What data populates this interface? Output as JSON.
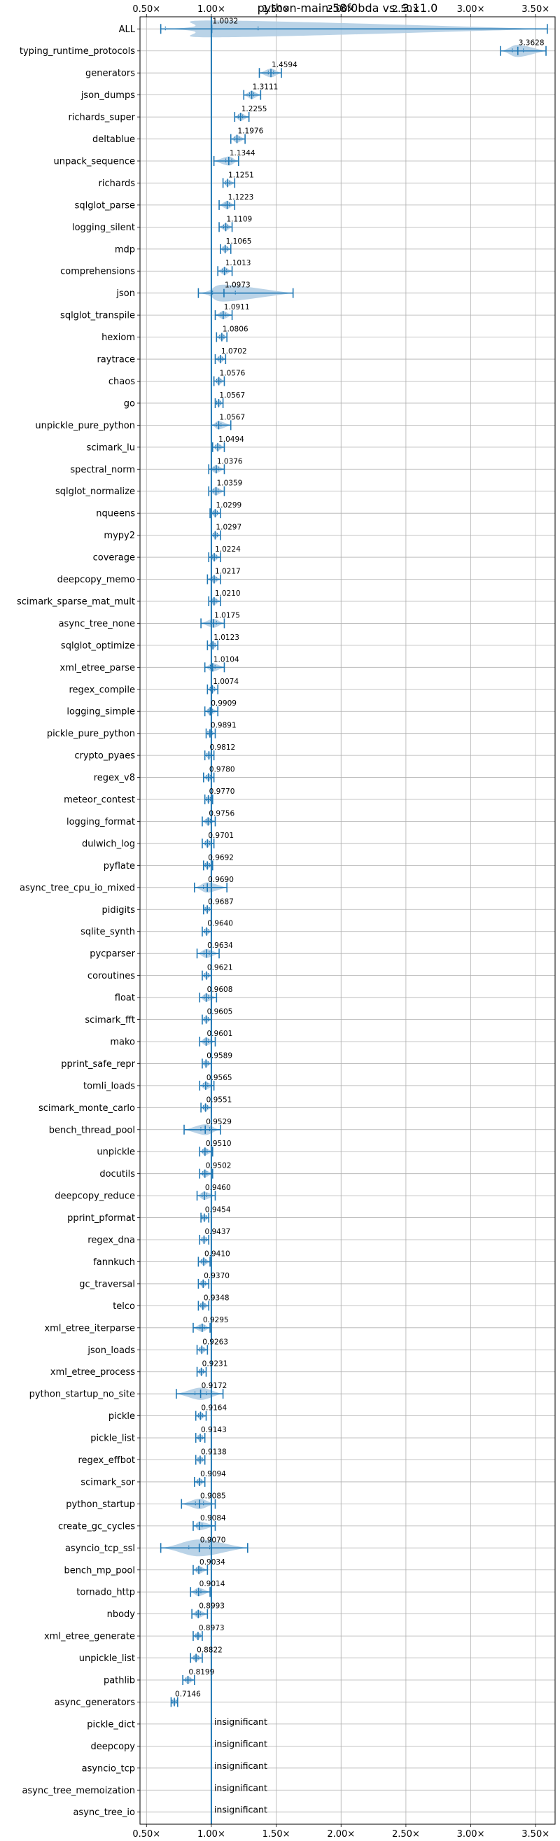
{
  "chart_data": {
    "type": "violin",
    "title": "python-main-58f0bda vs. 3.11.0",
    "xlabel": "",
    "ylabel": "",
    "xlim": [
      0.45,
      3.65
    ],
    "x_ticks": [
      {
        "value": 0.5,
        "label": "0.50×"
      },
      {
        "value": 1.0,
        "label": "1.00×"
      },
      {
        "value": 1.5,
        "label": "1.50×"
      },
      {
        "value": 2.0,
        "label": "2.00×"
      },
      {
        "value": 2.5,
        "label": "2.50×"
      },
      {
        "value": 3.0,
        "label": "3.00×"
      },
      {
        "value": 3.5,
        "label": "3.50×"
      }
    ],
    "reference_line": 1.0,
    "grid": true,
    "accent_color": "#1f77b4",
    "violin_color": "#aecbe3",
    "benchmarks": [
      {
        "name": "ALL",
        "value": 1.0032,
        "label": "1.0032",
        "min": 0.61,
        "max": 3.59
      },
      {
        "name": "typing_runtime_protocols",
        "value": 3.3628,
        "label": "3.3628",
        "min": 3.23,
        "max": 3.58
      },
      {
        "name": "generators",
        "value": 1.4594,
        "label": "1.4594",
        "min": 1.37,
        "max": 1.54
      },
      {
        "name": "json_dumps",
        "value": 1.3111,
        "label": "1.3111",
        "min": 1.25,
        "max": 1.38
      },
      {
        "name": "richards_super",
        "value": 1.2255,
        "label": "1.2255",
        "min": 1.18,
        "max": 1.29
      },
      {
        "name": "deltablue",
        "value": 1.1976,
        "label": "1.1976",
        "min": 1.15,
        "max": 1.26
      },
      {
        "name": "unpack_sequence",
        "value": 1.1344,
        "label": "1.1344",
        "min": 1.02,
        "max": 1.21
      },
      {
        "name": "richards",
        "value": 1.1251,
        "label": "1.1251",
        "min": 1.09,
        "max": 1.18
      },
      {
        "name": "sqlglot_parse",
        "value": 1.1223,
        "label": "1.1223",
        "min": 1.06,
        "max": 1.18
      },
      {
        "name": "logging_silent",
        "value": 1.1109,
        "label": "1.1109",
        "min": 1.06,
        "max": 1.16
      },
      {
        "name": "mdp",
        "value": 1.1065,
        "label": "1.1065",
        "min": 1.07,
        "max": 1.15
      },
      {
        "name": "comprehensions",
        "value": 1.1013,
        "label": "1.1013",
        "min": 1.05,
        "max": 1.16
      },
      {
        "name": "json",
        "value": 1.0973,
        "label": "1.0973",
        "min": 0.9,
        "max": 1.63
      },
      {
        "name": "sqlglot_transpile",
        "value": 1.0911,
        "label": "1.0911",
        "min": 1.03,
        "max": 1.16
      },
      {
        "name": "hexiom",
        "value": 1.0806,
        "label": "1.0806",
        "min": 1.04,
        "max": 1.12
      },
      {
        "name": "raytrace",
        "value": 1.0702,
        "label": "1.0702",
        "min": 1.03,
        "max": 1.11
      },
      {
        "name": "chaos",
        "value": 1.0576,
        "label": "1.0576",
        "min": 1.02,
        "max": 1.1
      },
      {
        "name": "go",
        "value": 1.0567,
        "label": "1.0567",
        "min": 1.03,
        "max": 1.09
      },
      {
        "name": "unpickle_pure_python",
        "value": 1.0567,
        "label": "1.0567",
        "min": 1.0,
        "max": 1.15
      },
      {
        "name": "scimark_lu",
        "value": 1.0494,
        "label": "1.0494",
        "min": 1.01,
        "max": 1.1
      },
      {
        "name": "spectral_norm",
        "value": 1.0376,
        "label": "1.0376",
        "min": 0.98,
        "max": 1.1
      },
      {
        "name": "sqlglot_normalize",
        "value": 1.0359,
        "label": "1.0359",
        "min": 0.98,
        "max": 1.1
      },
      {
        "name": "nqueens",
        "value": 1.0299,
        "label": "1.0299",
        "min": 0.99,
        "max": 1.07
      },
      {
        "name": "mypy2",
        "value": 1.0297,
        "label": "1.0297",
        "min": 1.0,
        "max": 1.07
      },
      {
        "name": "coverage",
        "value": 1.0224,
        "label": "1.0224",
        "min": 0.98,
        "max": 1.07
      },
      {
        "name": "deepcopy_memo",
        "value": 1.0217,
        "label": "1.0217",
        "min": 0.97,
        "max": 1.07
      },
      {
        "name": "scimark_sparse_mat_mult",
        "value": 1.021,
        "label": "1.0210",
        "min": 0.98,
        "max": 1.07
      },
      {
        "name": "async_tree_none",
        "value": 1.0175,
        "label": "1.0175",
        "min": 0.92,
        "max": 1.1
      },
      {
        "name": "sqlglot_optimize",
        "value": 1.0123,
        "label": "1.0123",
        "min": 0.97,
        "max": 1.05
      },
      {
        "name": "xml_etree_parse",
        "value": 1.0104,
        "label": "1.0104",
        "min": 0.95,
        "max": 1.1
      },
      {
        "name": "regex_compile",
        "value": 1.0074,
        "label": "1.0074",
        "min": 0.97,
        "max": 1.05
      },
      {
        "name": "logging_simple",
        "value": 0.9909,
        "label": "0.9909",
        "min": 0.95,
        "max": 1.05
      },
      {
        "name": "pickle_pure_python",
        "value": 0.9891,
        "label": "0.9891",
        "min": 0.96,
        "max": 1.03
      },
      {
        "name": "crypto_pyaes",
        "value": 0.9812,
        "label": "0.9812",
        "min": 0.95,
        "max": 1.02
      },
      {
        "name": "regex_v8",
        "value": 0.978,
        "label": "0.9780",
        "min": 0.94,
        "max": 1.02
      },
      {
        "name": "meteor_contest",
        "value": 0.977,
        "label": "0.9770",
        "min": 0.95,
        "max": 1.01
      },
      {
        "name": "logging_format",
        "value": 0.9756,
        "label": "0.9756",
        "min": 0.93,
        "max": 1.03
      },
      {
        "name": "dulwich_log",
        "value": 0.9701,
        "label": "0.9701",
        "min": 0.93,
        "max": 1.02
      },
      {
        "name": "pyflate",
        "value": 0.9692,
        "label": "0.9692",
        "min": 0.94,
        "max": 1.01
      },
      {
        "name": "async_tree_cpu_io_mixed",
        "value": 0.969,
        "label": "0.9690",
        "min": 0.87,
        "max": 1.12
      },
      {
        "name": "pidigits",
        "value": 0.9687,
        "label": "0.9687",
        "min": 0.94,
        "max": 1.0
      },
      {
        "name": "sqlite_synth",
        "value": 0.964,
        "label": "0.9640",
        "min": 0.93,
        "max": 1.0
      },
      {
        "name": "pycparser",
        "value": 0.9634,
        "label": "0.9634",
        "min": 0.89,
        "max": 1.06
      },
      {
        "name": "coroutines",
        "value": 0.9621,
        "label": "0.9621",
        "min": 0.93,
        "max": 1.0
      },
      {
        "name": "float",
        "value": 0.9608,
        "label": "0.9608",
        "min": 0.91,
        "max": 1.04
      },
      {
        "name": "scimark_fft",
        "value": 0.9605,
        "label": "0.9605",
        "min": 0.93,
        "max": 1.0
      },
      {
        "name": "mako",
        "value": 0.9601,
        "label": "0.9601",
        "min": 0.91,
        "max": 1.03
      },
      {
        "name": "pprint_safe_repr",
        "value": 0.9589,
        "label": "0.9589",
        "min": 0.93,
        "max": 1.0
      },
      {
        "name": "tomli_loads",
        "value": 0.9565,
        "label": "0.9565",
        "min": 0.91,
        "max": 1.02
      },
      {
        "name": "scimark_monte_carlo",
        "value": 0.9551,
        "label": "0.9551",
        "min": 0.92,
        "max": 1.0
      },
      {
        "name": "bench_thread_pool",
        "value": 0.9529,
        "label": "0.9529",
        "min": 0.79,
        "max": 1.07
      },
      {
        "name": "unpickle",
        "value": 0.951,
        "label": "0.9510",
        "min": 0.91,
        "max": 1.01
      },
      {
        "name": "docutils",
        "value": 0.9502,
        "label": "0.9502",
        "min": 0.91,
        "max": 1.01
      },
      {
        "name": "deepcopy_reduce",
        "value": 0.946,
        "label": "0.9460",
        "min": 0.89,
        "max": 1.03
      },
      {
        "name": "pprint_pformat",
        "value": 0.9454,
        "label": "0.9454",
        "min": 0.92,
        "max": 0.98
      },
      {
        "name": "regex_dna",
        "value": 0.9437,
        "label": "0.9437",
        "min": 0.91,
        "max": 0.98
      },
      {
        "name": "fannkuch",
        "value": 0.941,
        "label": "0.9410",
        "min": 0.9,
        "max": 0.99
      },
      {
        "name": "gc_traversal",
        "value": 0.937,
        "label": "0.9370",
        "min": 0.9,
        "max": 0.98
      },
      {
        "name": "telco",
        "value": 0.9348,
        "label": "0.9348",
        "min": 0.9,
        "max": 0.98
      },
      {
        "name": "xml_etree_iterparse",
        "value": 0.9295,
        "label": "0.9295",
        "min": 0.86,
        "max": 0.99
      },
      {
        "name": "json_loads",
        "value": 0.9263,
        "label": "0.9263",
        "min": 0.89,
        "max": 0.97
      },
      {
        "name": "xml_etree_process",
        "value": 0.9231,
        "label": "0.9231",
        "min": 0.89,
        "max": 0.96
      },
      {
        "name": "python_startup_no_site",
        "value": 0.9172,
        "label": "0.9172",
        "min": 0.73,
        "max": 1.09
      },
      {
        "name": "pickle",
        "value": 0.9164,
        "label": "0.9164",
        "min": 0.88,
        "max": 0.96
      },
      {
        "name": "pickle_list",
        "value": 0.9143,
        "label": "0.9143",
        "min": 0.88,
        "max": 0.95
      },
      {
        "name": "regex_effbot",
        "value": 0.9138,
        "label": "0.9138",
        "min": 0.88,
        "max": 0.95
      },
      {
        "name": "scimark_sor",
        "value": 0.9094,
        "label": "0.9094",
        "min": 0.87,
        "max": 0.95
      },
      {
        "name": "python_startup",
        "value": 0.9085,
        "label": "0.9085",
        "min": 0.77,
        "max": 1.03
      },
      {
        "name": "create_gc_cycles",
        "value": 0.9084,
        "label": "0.9084",
        "min": 0.86,
        "max": 1.03
      },
      {
        "name": "asyncio_tcp_ssl",
        "value": 0.907,
        "label": "0.9070",
        "min": 0.61,
        "max": 1.28
      },
      {
        "name": "bench_mp_pool",
        "value": 0.9034,
        "label": "0.9034",
        "min": 0.86,
        "max": 0.97
      },
      {
        "name": "tornado_http",
        "value": 0.9014,
        "label": "0.9014",
        "min": 0.84,
        "max": 0.99
      },
      {
        "name": "nbody",
        "value": 0.8993,
        "label": "0.8993",
        "min": 0.85,
        "max": 0.97
      },
      {
        "name": "xml_etree_generate",
        "value": 0.8973,
        "label": "0.8973",
        "min": 0.86,
        "max": 0.93
      },
      {
        "name": "unpickle_list",
        "value": 0.8822,
        "label": "0.8822",
        "min": 0.84,
        "max": 0.93
      },
      {
        "name": "pathlib",
        "value": 0.8199,
        "label": "0.8199",
        "min": 0.78,
        "max": 0.87
      },
      {
        "name": "async_generators",
        "value": 0.7146,
        "label": "0.7146",
        "min": 0.69,
        "max": 0.74
      },
      {
        "name": "pickle_dict",
        "insignificant": true,
        "label": "insignificant"
      },
      {
        "name": "deepcopy",
        "insignificant": true,
        "label": "insignificant"
      },
      {
        "name": "asyncio_tcp",
        "insignificant": true,
        "label": "insignificant"
      },
      {
        "name": "async_tree_memoization",
        "insignificant": true,
        "label": "insignificant"
      },
      {
        "name": "async_tree_io",
        "insignificant": true,
        "label": "insignificant"
      }
    ]
  }
}
